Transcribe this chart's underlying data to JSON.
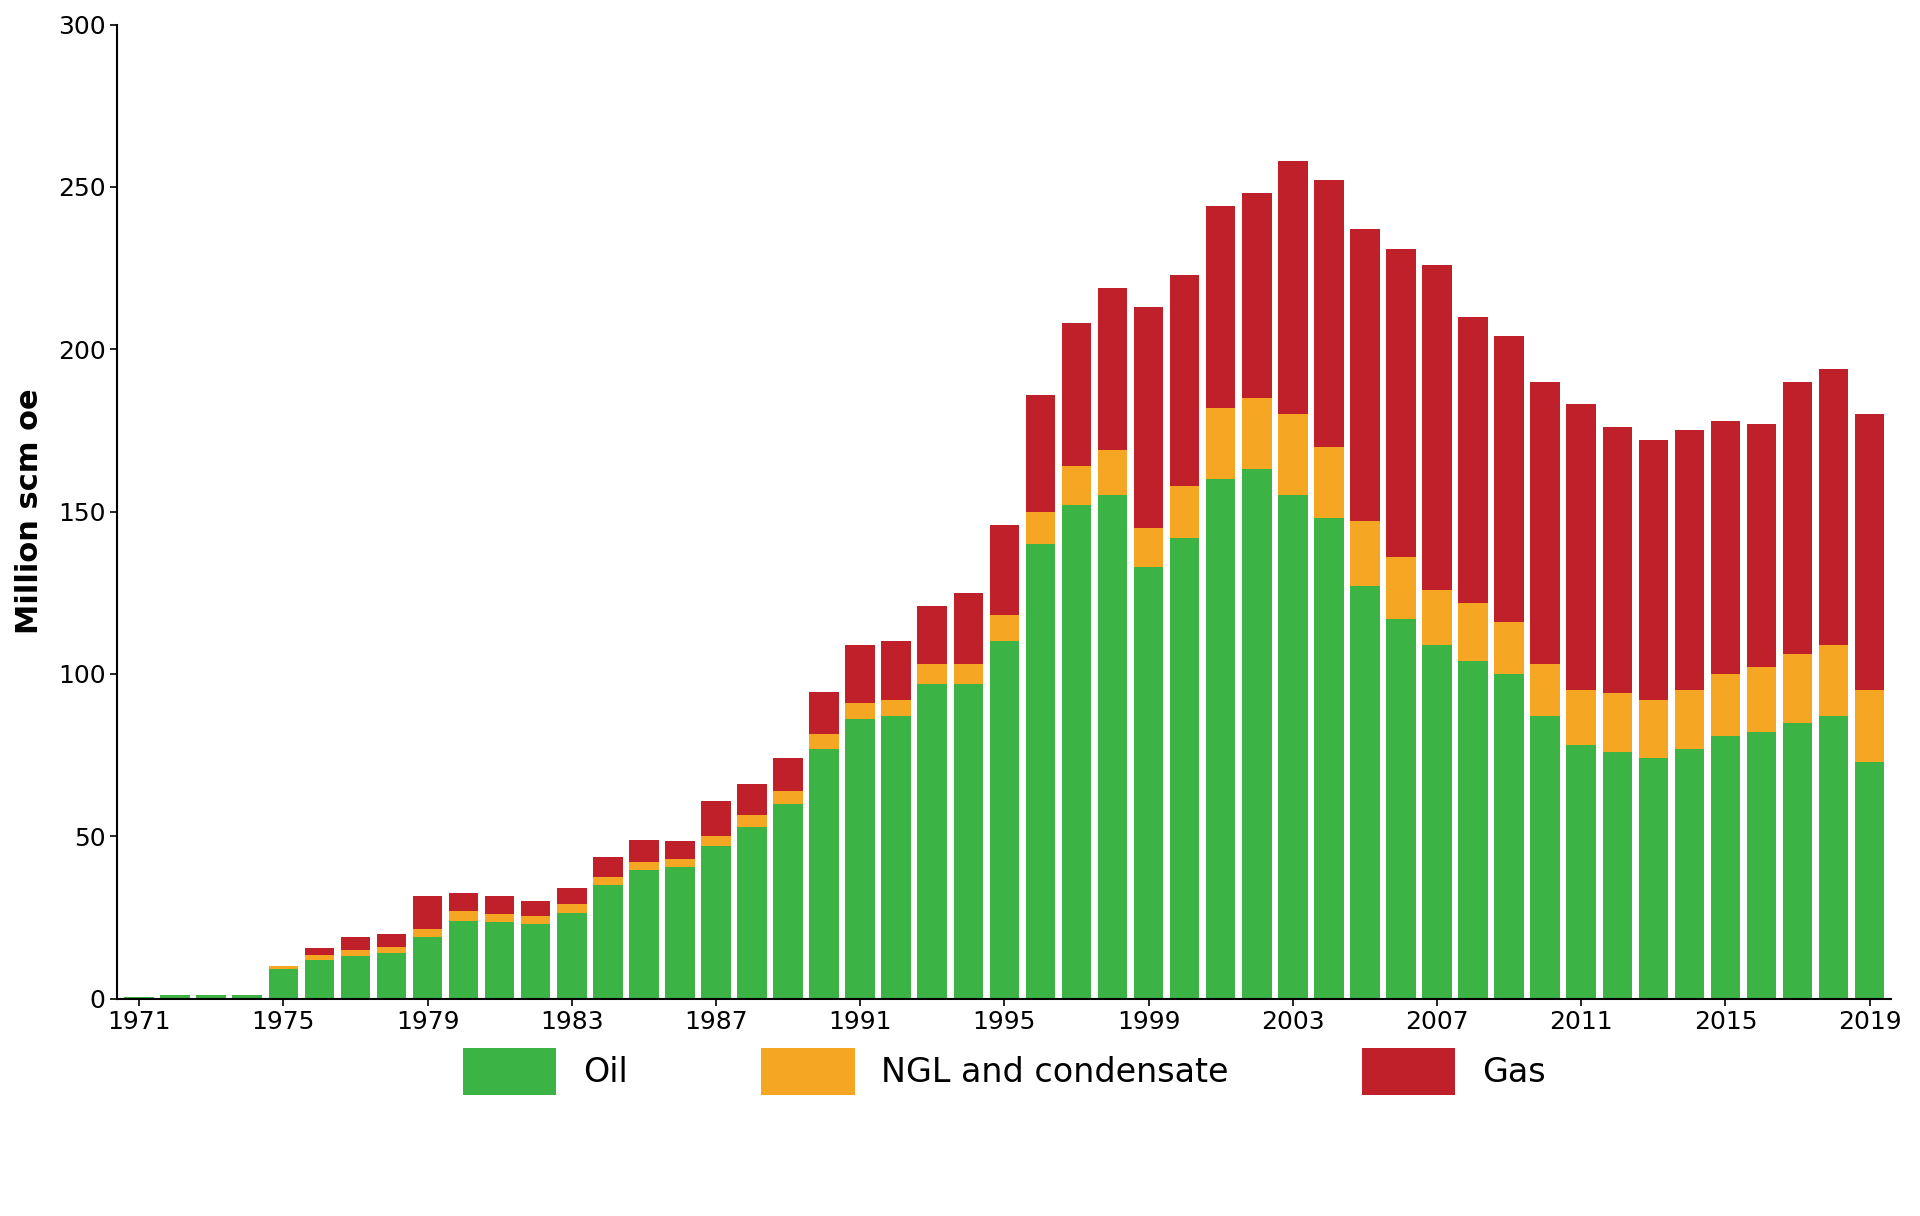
{
  "years": [
    1971,
    1972,
    1973,
    1974,
    1975,
    1976,
    1977,
    1978,
    1979,
    1980,
    1981,
    1982,
    1983,
    1984,
    1985,
    1986,
    1987,
    1988,
    1989,
    1990,
    1991,
    1992,
    1993,
    1994,
    1995,
    1996,
    1997,
    1998,
    1999,
    2000,
    2001,
    2002,
    2003,
    2004,
    2005,
    2006,
    2007,
    2008,
    2009,
    2010,
    2011,
    2012,
    2013,
    2014,
    2015,
    2016,
    2017,
    2018,
    2019
  ],
  "oil": [
    0.5,
    1.0,
    1.0,
    1.0,
    9.0,
    12.0,
    13.0,
    14.0,
    19.0,
    24.0,
    23.5,
    23.0,
    26.5,
    35.0,
    39.5,
    40.5,
    47.0,
    53.0,
    60.0,
    77.0,
    86.0,
    87.0,
    97.0,
    97.0,
    110.0,
    140.0,
    152.0,
    155.0,
    133.0,
    142.0,
    160.0,
    163.0,
    155.0,
    148.0,
    127.0,
    117.0,
    109.0,
    104.0,
    100.0,
    87.0,
    78.0,
    76.0,
    74.0,
    77.0,
    81.0,
    82.0,
    85.0,
    87.0,
    73.0
  ],
  "ngl": [
    0.0,
    0.0,
    0.0,
    0.0,
    1.0,
    1.5,
    2.0,
    2.0,
    2.5,
    3.0,
    2.5,
    2.5,
    2.5,
    2.5,
    2.5,
    2.5,
    3.0,
    3.5,
    4.0,
    4.5,
    5.0,
    5.0,
    6.0,
    6.0,
    8.0,
    10.0,
    12.0,
    14.0,
    12.0,
    16.0,
    22.0,
    22.0,
    25.0,
    22.0,
    20.0,
    19.0,
    17.0,
    18.0,
    16.0,
    16.0,
    17.0,
    18.0,
    18.0,
    18.0,
    19.0,
    20.0,
    21.0,
    22.0,
    22.0
  ],
  "gas": [
    0.0,
    0.0,
    0.0,
    0.0,
    0.0,
    2.0,
    4.0,
    4.0,
    10.0,
    5.5,
    5.5,
    4.5,
    5.0,
    6.0,
    7.0,
    5.5,
    11.0,
    9.5,
    10.0,
    13.0,
    18.0,
    18.0,
    18.0,
    22.0,
    28.0,
    36.0,
    44.0,
    50.0,
    68.0,
    65.0,
    62.0,
    63.0,
    78.0,
    82.0,
    90.0,
    95.0,
    100.0,
    88.0,
    88.0,
    87.0,
    88.0,
    82.0,
    80.0,
    80.0,
    78.0,
    75.0,
    84.0,
    85.0,
    85.0
  ],
  "oil_color": "#3cb345",
  "ngl_color": "#f5a623",
  "gas_color": "#c0202a",
  "ylabel": "Million scm oe",
  "ylim": [
    0,
    300
  ],
  "yticks": [
    0,
    50,
    100,
    150,
    200,
    250,
    300
  ],
  "background_color": "#ffffff",
  "legend_labels": [
    "Oil",
    "NGL and condensate",
    "Gas"
  ],
  "bar_width": 0.82
}
